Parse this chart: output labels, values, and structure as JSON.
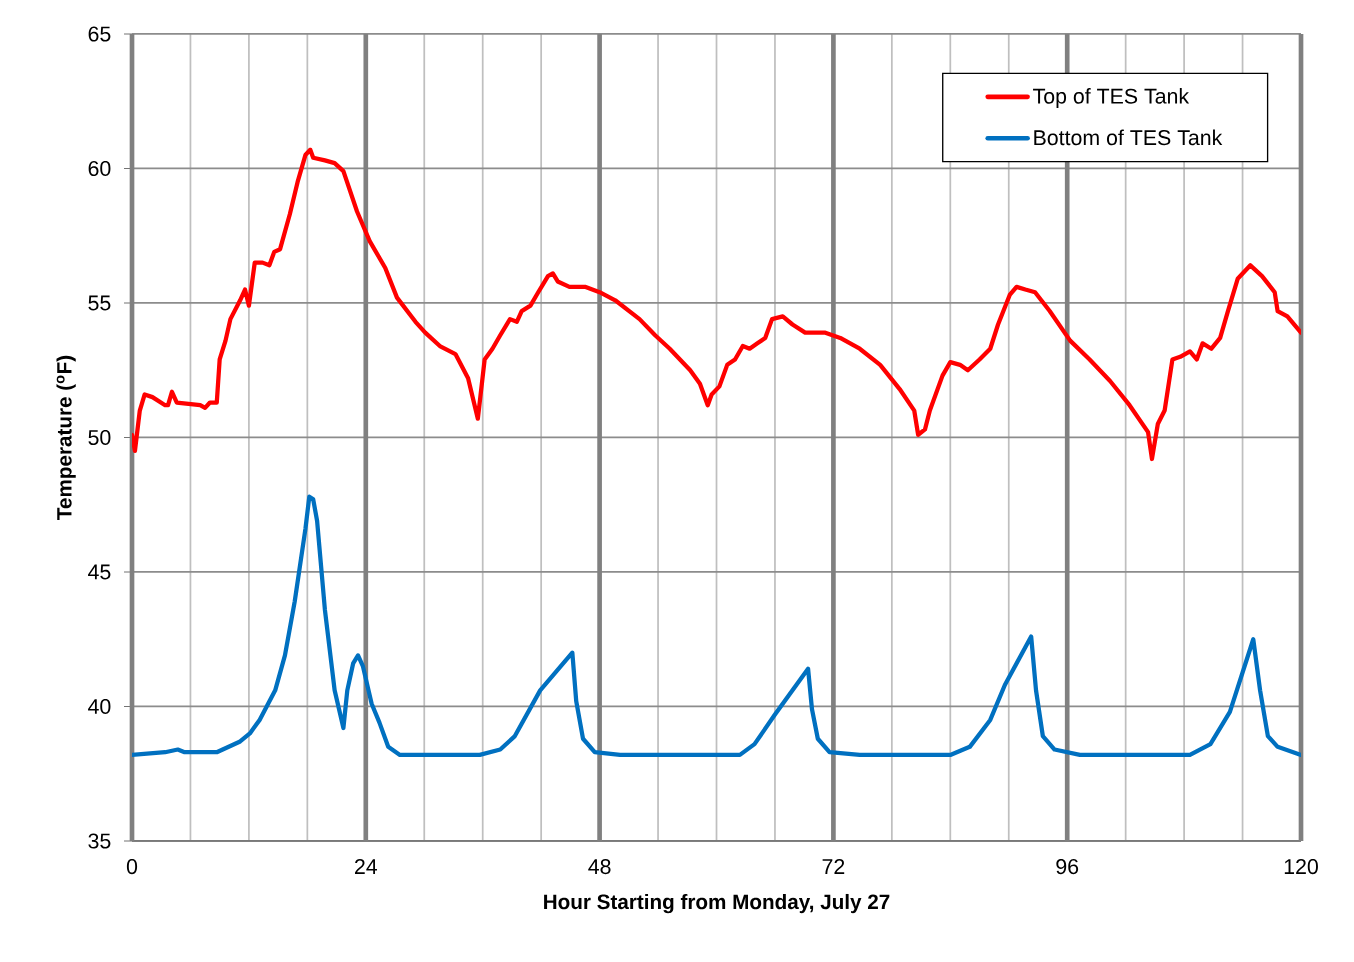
{
  "chart_data": {
    "type": "line",
    "xlabel": "Hour Starting from Monday, July 27",
    "ylabel": "Temperature ($^{o}$F)",
    "xlim": [
      0,
      120
    ],
    "ylim": [
      35,
      65
    ],
    "xticks": [
      0,
      {
        "value": 6,
        "label": null
      },
      {
        "value": 12,
        "label": null
      },
      {
        "value": 18,
        "label": null
      },
      24,
      {
        "value": 30,
        "label": null
      },
      {
        "value": 36,
        "label": null
      },
      {
        "value": 42,
        "label": null
      },
      48,
      {
        "value": 54,
        "label": null
      },
      {
        "value": 60,
        "label": null
      },
      {
        "value": 66,
        "label": null
      },
      72,
      {
        "value": 78,
        "label": null
      },
      {
        "value": 84,
        "label": null
      },
      {
        "value": 90,
        "label": null
      },
      96,
      {
        "value": 102,
        "label": null
      },
      {
        "value": 108,
        "label": null
      },
      {
        "value": 114,
        "label": null
      },
      120
    ],
    "yticks": [
      35,
      40,
      45,
      50,
      55,
      60,
      65
    ],
    "grid": true,
    "legend": "top right",
    "marker": "none",
    "line_style": "solid",
    "series": [
      {
        "name": "Top of TES Tank",
        "color": "#ff0000",
        "x": [
          0,
          0.3,
          0.8,
          1.3,
          2.1,
          3.4,
          3.7,
          4.1,
          4.6,
          7.0,
          7.5,
          8.0,
          8.7,
          9.0,
          9.6,
          10.1,
          11.1,
          11.6,
          12.0,
          12.6,
          13.4,
          14.1,
          14.6,
          15.2,
          16.2,
          17.0,
          17.8,
          18.3,
          18.6,
          19.8,
          20.8,
          21.7,
          23.1,
          24.4,
          26.0,
          27.2,
          29.1,
          30.1,
          31.6,
          33.2,
          34.5,
          35.5,
          36.2,
          37.0,
          37.8,
          38.8,
          39.5,
          40.0,
          40.9,
          41.7,
          42.7,
          43.2,
          43.7,
          44.9,
          46.5,
          48.0,
          49.6,
          52.1,
          53.7,
          55.2,
          57.3,
          58.3,
          59.1,
          59.5,
          60.3,
          61.1,
          61.9,
          62.7,
          63.4,
          64.2,
          65.0,
          65.7,
          66.8,
          67.8,
          69.1,
          71.1,
          72.7,
          74.7,
          76.8,
          78.8,
          80.3,
          80.7,
          81.4,
          81.9,
          83.2,
          84.0,
          85.0,
          85.8,
          87.0,
          88.1,
          88.9,
          90.1,
          90.8,
          91.7,
          92.7,
          94.2,
          96.3,
          98.3,
          100.4,
          102.4,
          104.3,
          104.7,
          105.3,
          106.0,
          106.8,
          107.6,
          108.6,
          109.3,
          109.9,
          110.8,
          111.7,
          112.5,
          113.5,
          114.8,
          116.0,
          117.3,
          117.6,
          118.6,
          120
        ],
        "values": [
          50.1,
          49.5,
          51.0,
          51.6,
          51.5,
          51.2,
          51.2,
          51.7,
          51.3,
          51.2,
          51.1,
          51.3,
          51.3,
          52.9,
          53.6,
          54.4,
          55.1,
          55.5,
          54.9,
          56.5,
          56.5,
          56.4,
          56.9,
          57.0,
          58.3,
          59.5,
          60.5,
          60.7,
          60.4,
          60.3,
          60.2,
          59.9,
          58.4,
          57.3,
          56.3,
          55.2,
          54.3,
          53.9,
          53.4,
          53.1,
          52.2,
          50.7,
          52.9,
          53.3,
          53.8,
          54.4,
          54.3,
          54.7,
          54.9,
          55.4,
          56.0,
          56.1,
          55.8,
          55.6,
          55.6,
          55.4,
          55.1,
          54.4,
          53.8,
          53.3,
          52.5,
          52.0,
          51.2,
          51.6,
          51.9,
          52.7,
          52.9,
          53.4,
          53.3,
          53.5,
          53.7,
          54.4,
          54.5,
          54.2,
          53.9,
          53.9,
          53.7,
          53.3,
          52.7,
          51.8,
          51.0,
          50.1,
          50.3,
          51.0,
          52.3,
          52.8,
          52.7,
          52.5,
          52.9,
          53.3,
          54.2,
          55.3,
          55.6,
          55.5,
          55.4,
          54.7,
          53.6,
          52.9,
          52.1,
          51.2,
          50.2,
          49.2,
          50.5,
          51.0,
          52.9,
          53.0,
          53.2,
          52.9,
          53.5,
          53.3,
          53.7,
          54.7,
          55.9,
          56.4,
          56.0,
          55.4,
          54.7,
          54.5,
          53.9
        ]
      },
      {
        "name": "Bottom of TES Tank",
        "color": "#0070c0",
        "x": [
          0,
          3.4,
          4.7,
          5.4,
          8.7,
          11.1,
          12.1,
          13.1,
          14.7,
          15.7,
          16.7,
          17.8,
          18.2,
          18.6,
          19.0,
          19.8,
          20.8,
          21.7,
          22.1,
          22.7,
          23.2,
          23.7,
          24.6,
          25.4,
          26.3,
          27.5,
          30.6,
          35.7,
          37.8,
          39.3,
          41.9,
          45.2,
          45.6,
          46.3,
          47.5,
          50.1,
          62.4,
          63.9,
          66.0,
          69.4,
          69.8,
          70.4,
          71.6,
          74.7,
          84.0,
          86.0,
          88.1,
          89.6,
          92.3,
          92.8,
          93.5,
          94.7,
          97.3,
          108.6,
          110.7,
          112.7,
          115.1,
          115.8,
          116.6,
          117.6,
          120
        ],
        "values": [
          38.2,
          38.3,
          38.4,
          38.3,
          38.3,
          38.7,
          39.0,
          39.5,
          40.6,
          41.9,
          43.9,
          46.6,
          47.8,
          47.7,
          46.9,
          43.6,
          40.6,
          39.2,
          40.6,
          41.6,
          41.9,
          41.5,
          40.1,
          39.4,
          38.5,
          38.2,
          38.2,
          38.2,
          38.4,
          38.9,
          40.6,
          42.0,
          40.2,
          38.8,
          38.3,
          38.2,
          38.2,
          38.6,
          39.7,
          41.4,
          39.9,
          38.8,
          38.3,
          38.2,
          38.2,
          38.5,
          39.5,
          40.8,
          42.6,
          40.6,
          38.9,
          38.4,
          38.2,
          38.2,
          38.6,
          39.8,
          42.5,
          40.6,
          38.9,
          38.5,
          38.2
        ]
      }
    ]
  }
}
